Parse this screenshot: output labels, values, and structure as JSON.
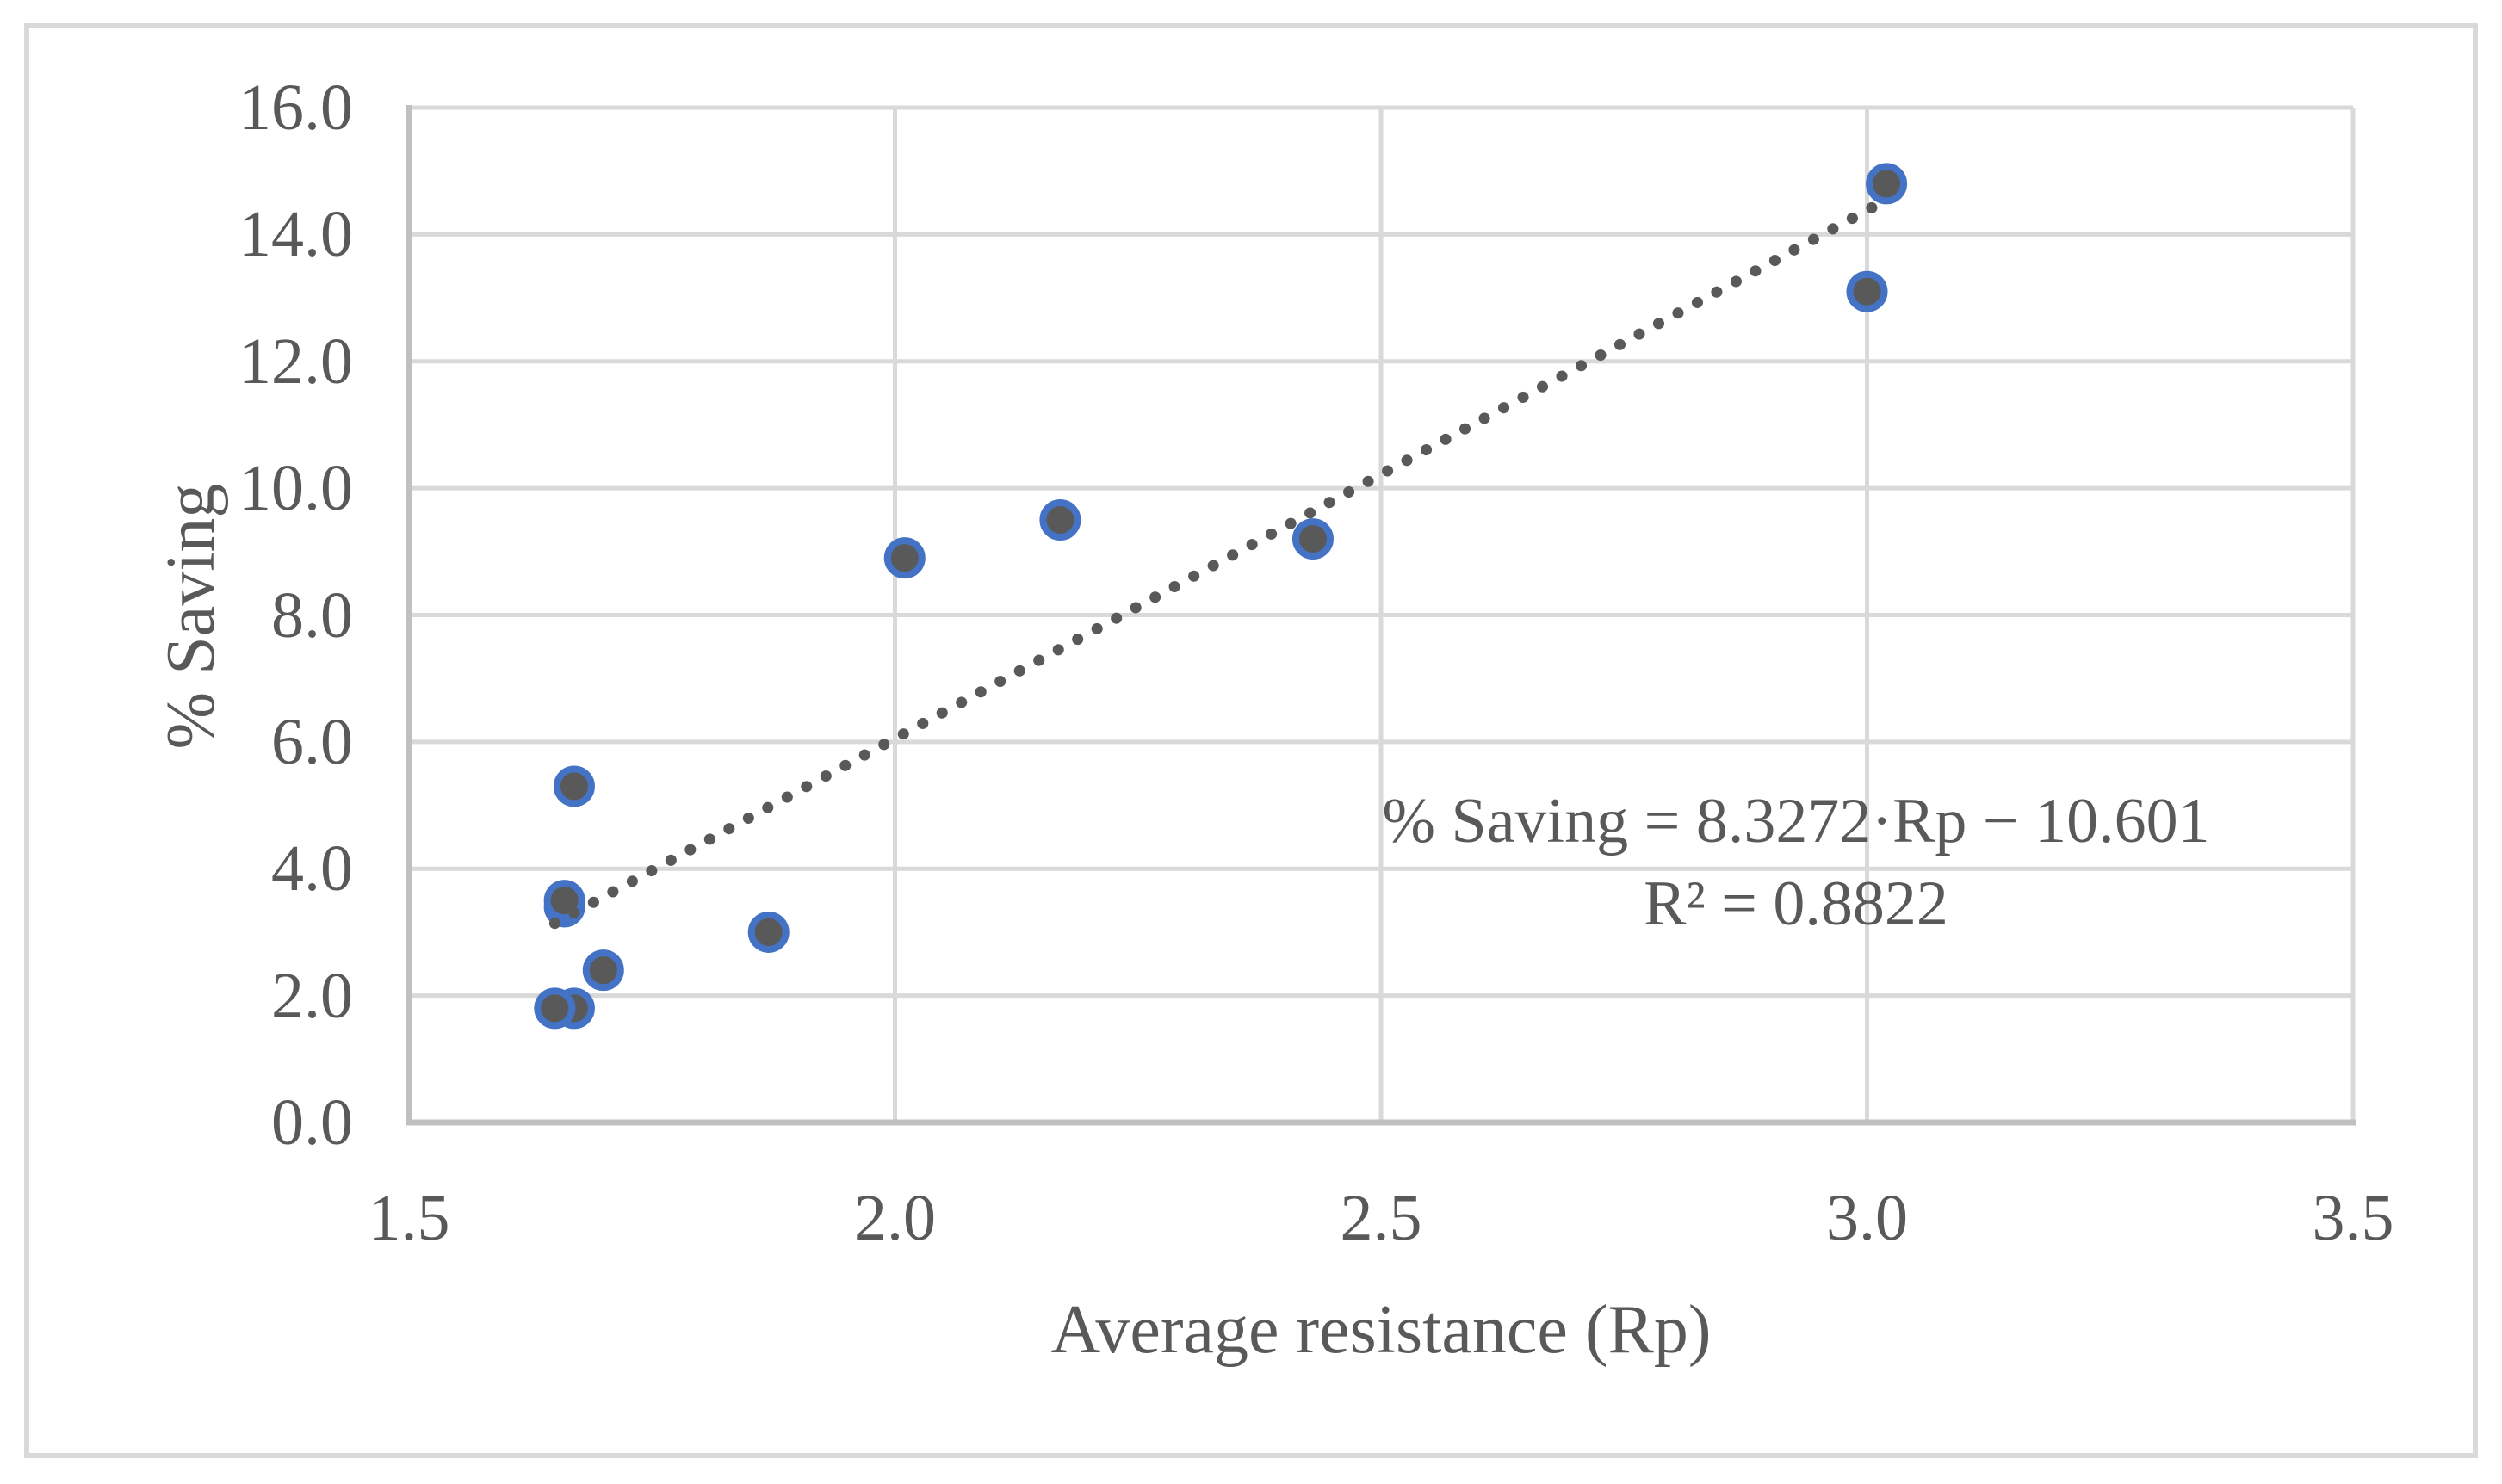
{
  "chart_data": {
    "type": "scatter",
    "title": "",
    "xlabel": "Average resistance (Rp)",
    "ylabel": "% Saving",
    "xlim": [
      1.5,
      3.5
    ],
    "ylim": [
      0.0,
      16.0
    ],
    "x_ticks": [
      "1.5",
      "2.0",
      "2.5",
      "3.0",
      "3.5"
    ],
    "y_ticks": [
      "0.0",
      "2.0",
      "4.0",
      "6.0",
      "8.0",
      "10.0",
      "12.0",
      "14.0",
      "16.0"
    ],
    "grid": true,
    "legend": "none",
    "points": [
      {
        "x": 1.67,
        "y": 1.8
      },
      {
        "x": 1.65,
        "y": 1.8
      },
      {
        "x": 1.7,
        "y": 2.4
      },
      {
        "x": 1.66,
        "y": 3.4
      },
      {
        "x": 1.66,
        "y": 3.5
      },
      {
        "x": 1.87,
        "y": 3.0
      },
      {
        "x": 1.67,
        "y": 5.3
      },
      {
        "x": 2.01,
        "y": 8.9
      },
      {
        "x": 2.17,
        "y": 9.5
      },
      {
        "x": 2.43,
        "y": 9.2
      },
      {
        "x": 3.0,
        "y": 13.1
      },
      {
        "x": 3.02,
        "y": 14.8
      }
    ],
    "trendline": {
      "slope": 8.3272,
      "intercept": -10.601,
      "x_start": 1.65,
      "x_end": 3.02,
      "style": "dotted"
    },
    "annotation": {
      "line1": "% Saving = 8.3272·Rp − 10.601",
      "line2": "R² = 0.8822"
    },
    "colors": {
      "marker_fill": "#595959",
      "marker_ring": "#4472C4",
      "trendline": "#595959",
      "gridline": "#d9d9d9",
      "axis_line": "#c0c0c0",
      "text": "#595959",
      "figure_border": "#d9d9d9",
      "background": "#ffffff"
    }
  }
}
